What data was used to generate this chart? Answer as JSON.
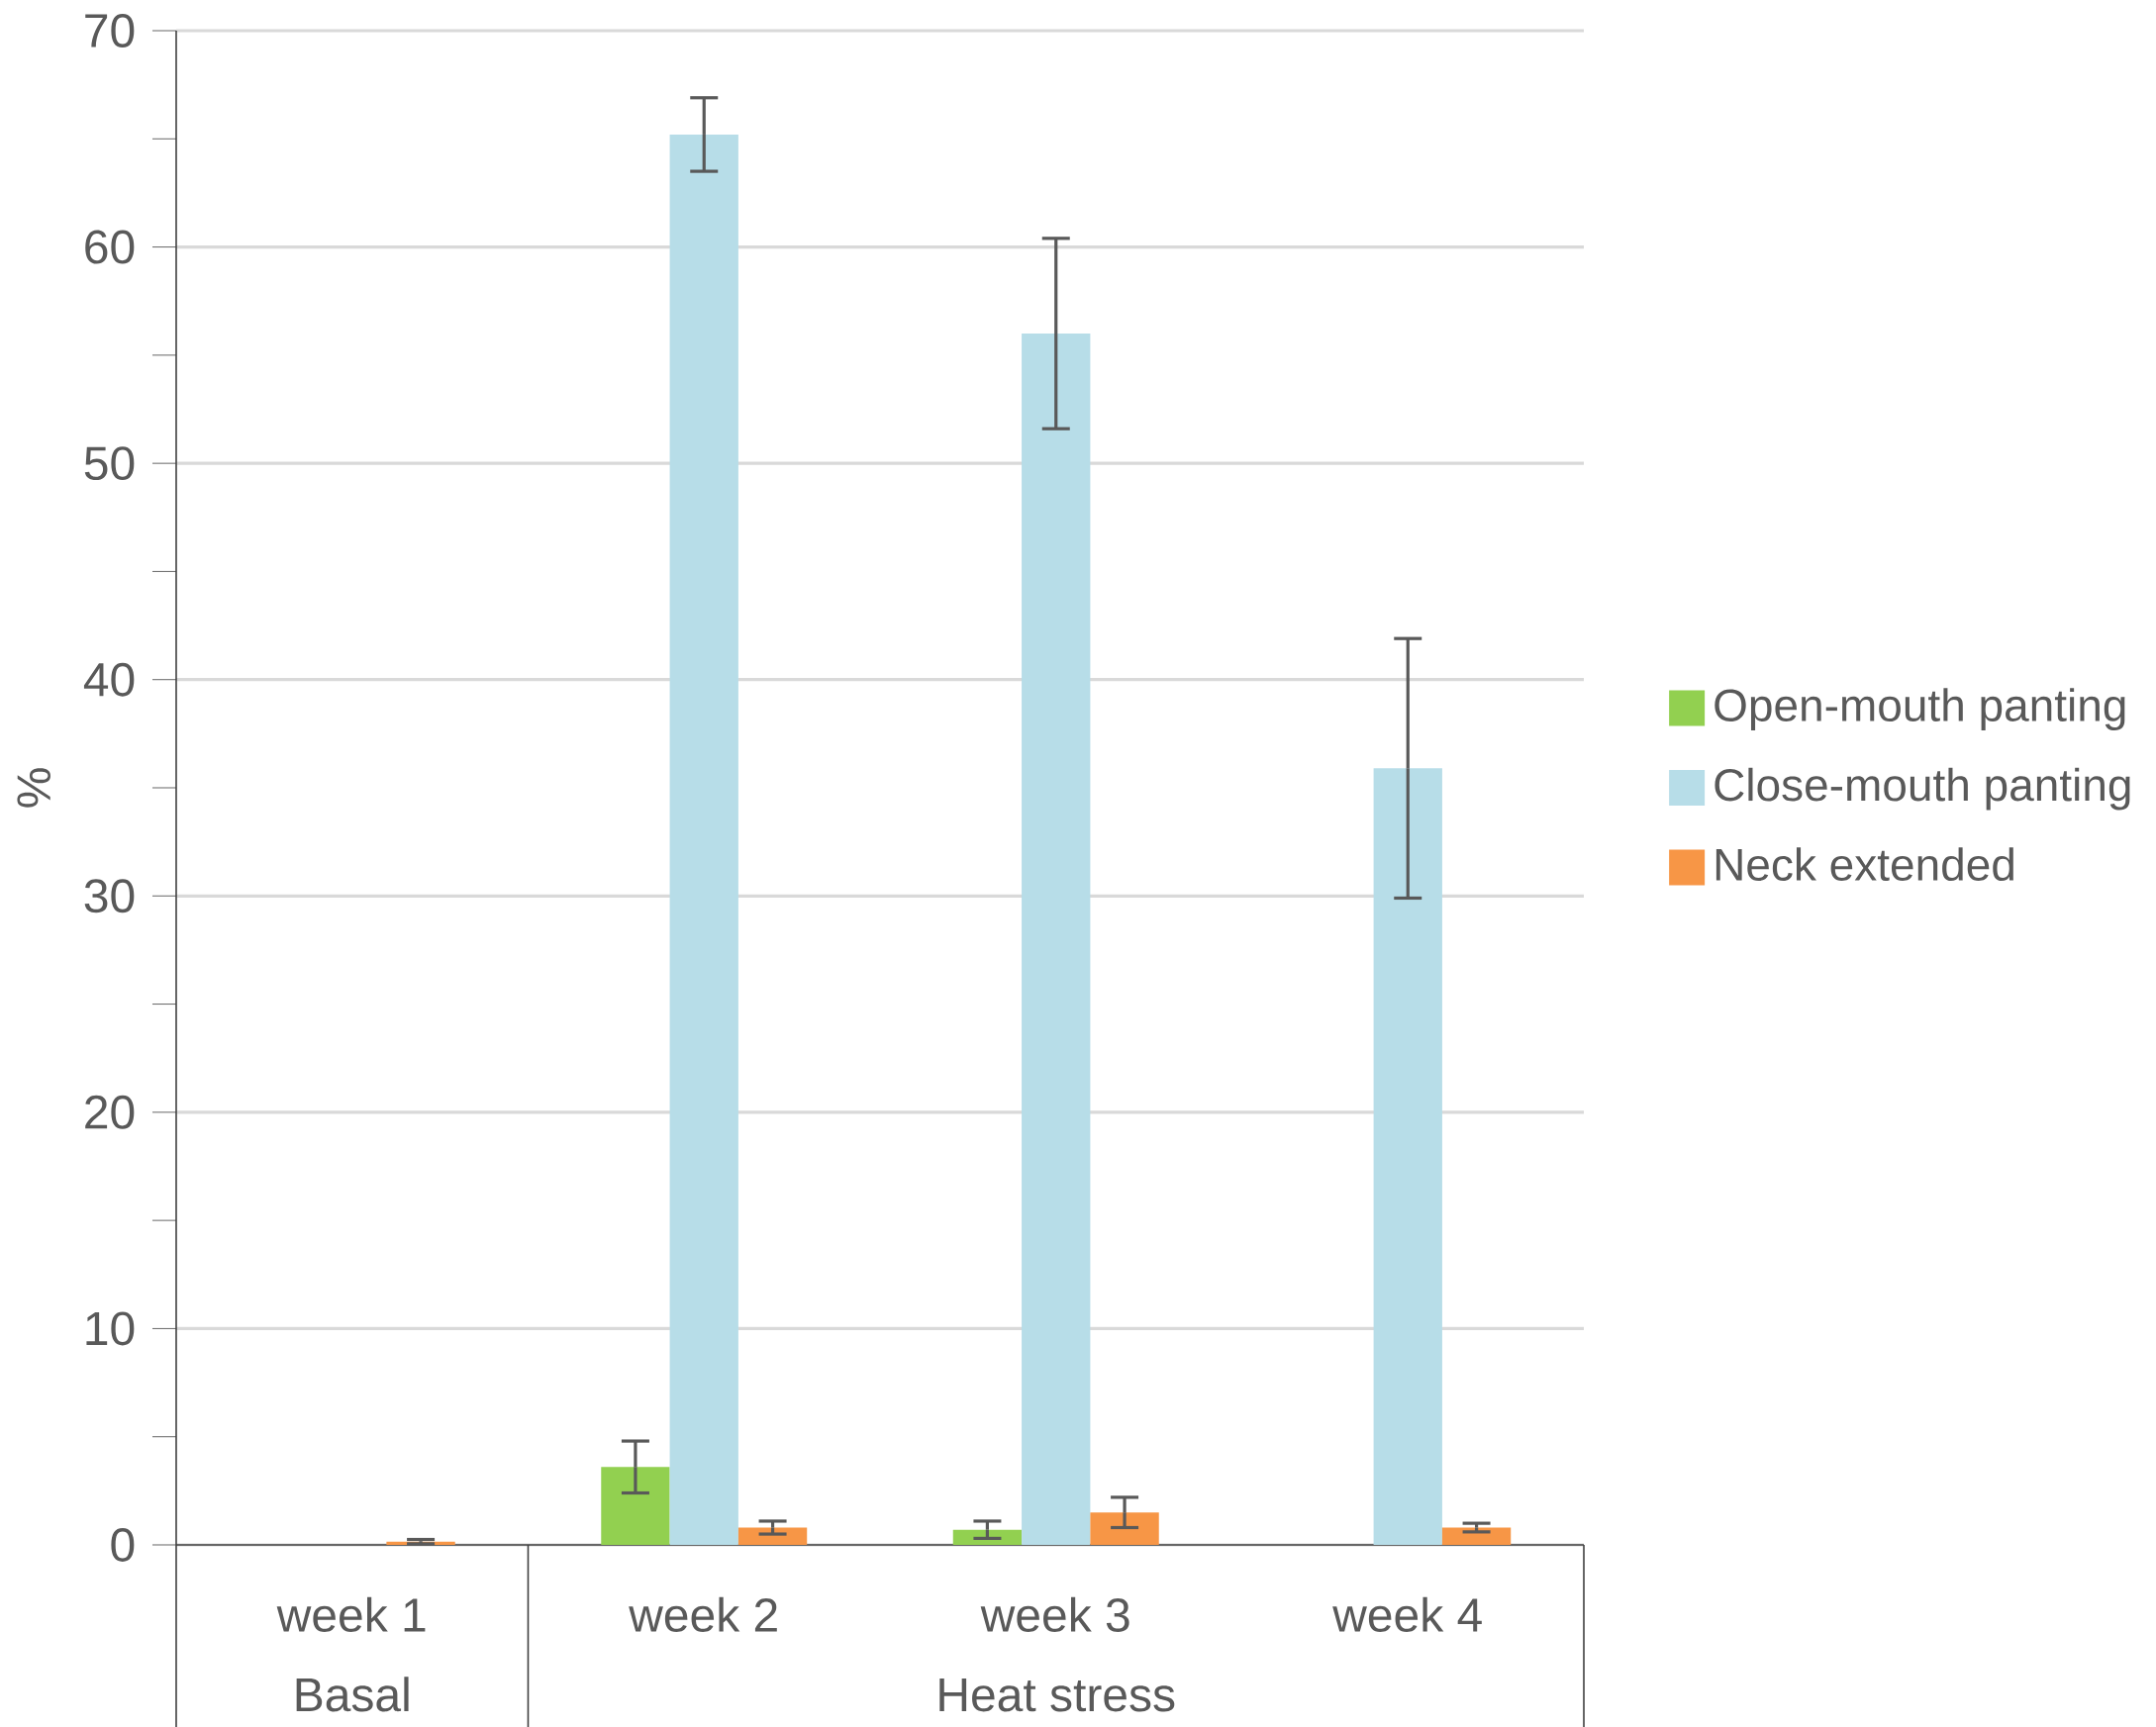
{
  "chart_data": {
    "type": "bar",
    "ylabel": "%",
    "categories": [
      "week 1",
      "week 2",
      "week 3",
      "week 4"
    ],
    "annotations": [
      "Basal",
      "Heat stress"
    ],
    "series": [
      {
        "name": "Open-mouth panting",
        "color": "#92d050",
        "values": [
          null,
          3.6,
          0.7,
          null
        ],
        "errors": [
          null,
          1.2,
          0.4,
          null
        ]
      },
      {
        "name": "Close-mouth panting",
        "color": "#b7dde8",
        "values": [
          null,
          65.2,
          56.0,
          35.9
        ],
        "errors": [
          null,
          1.7,
          4.4,
          6.0
        ]
      },
      {
        "name": "Neck extended",
        "color": "#f79646",
        "values": [
          0.15,
          0.8,
          1.5,
          0.8
        ],
        "errors": [
          0.1,
          0.3,
          0.7,
          0.2
        ]
      }
    ],
    "ylim": [
      0,
      70
    ],
    "yticks": [
      0,
      10,
      20,
      30,
      40,
      50,
      60,
      70
    ],
    "grid": "y",
    "legend": "right"
  }
}
